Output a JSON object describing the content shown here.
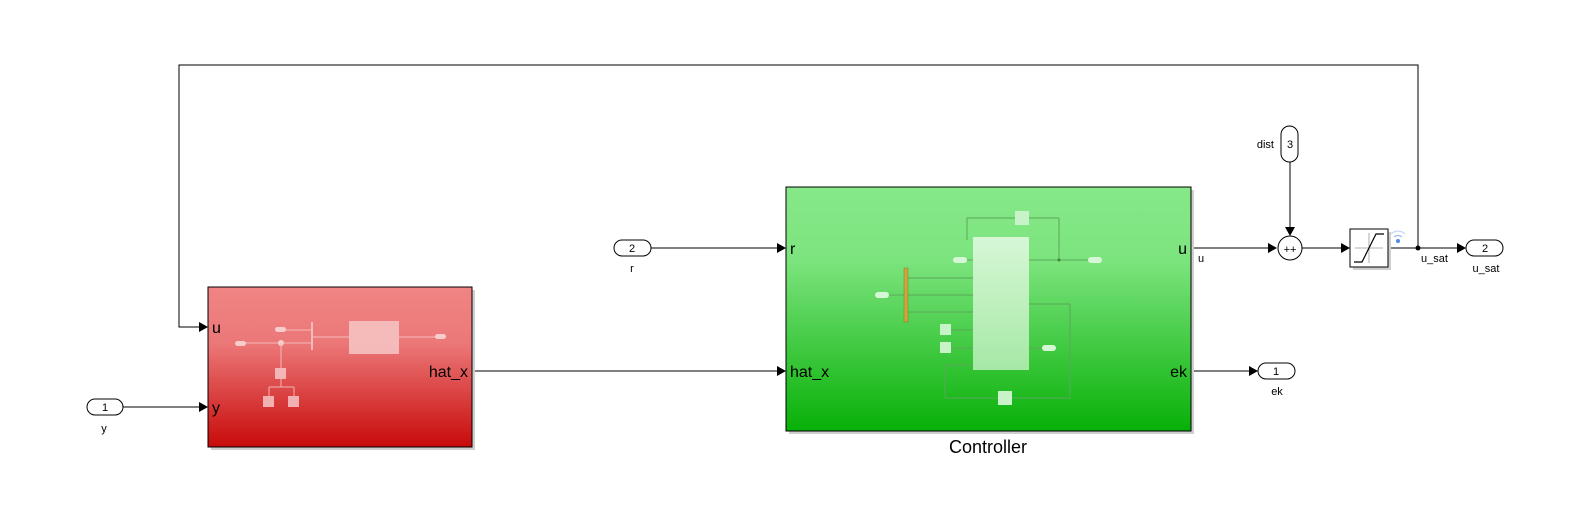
{
  "observer_block": {
    "ports_in": [
      "u",
      "y"
    ],
    "ports_out": [
      "hat_x"
    ],
    "colors": {
      "top": "#f08484",
      "bottom": "#c80a0a"
    }
  },
  "controller_block": {
    "title": "Controller",
    "ports_in": [
      "r",
      "hat_x"
    ],
    "ports_out": [
      "u",
      "ek"
    ],
    "colors": {
      "top": "#86e888",
      "bottom": "#08b008"
    }
  },
  "inports": [
    {
      "number": "1",
      "label": "y"
    },
    {
      "number": "2",
      "label": "r"
    },
    {
      "number": "3",
      "label": "dist"
    }
  ],
  "outports": [
    {
      "number": "1",
      "label": "ek"
    },
    {
      "number": "2",
      "label": "u_sat"
    }
  ],
  "signals": {
    "u": "u",
    "u_sat": "u_sat"
  },
  "sum_block": {
    "signs": "++"
  },
  "saturation_block": {
    "icon": "saturation-icon"
  },
  "logging_icon": "signal-logging-icon"
}
